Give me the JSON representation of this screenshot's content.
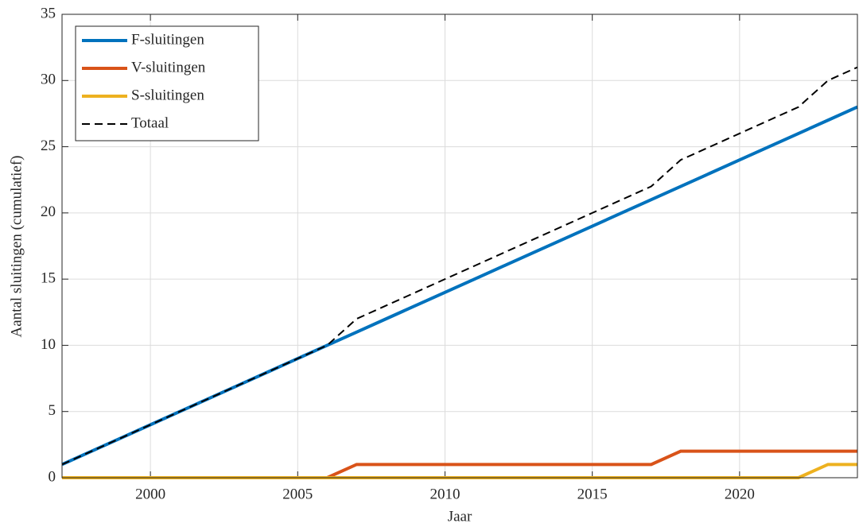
{
  "chart_data": {
    "type": "line",
    "x": [
      1997,
      1998,
      1999,
      2000,
      2001,
      2002,
      2003,
      2004,
      2005,
      2006,
      2007,
      2008,
      2009,
      2010,
      2011,
      2012,
      2013,
      2014,
      2015,
      2016,
      2017,
      2018,
      2019,
      2020,
      2021,
      2022,
      2023,
      2024
    ],
    "series": [
      {
        "name": "F-sluitingen",
        "color": "#0072BD",
        "linestyle": "solid",
        "values": [
          1,
          2,
          3,
          4,
          5,
          6,
          7,
          8,
          9,
          10,
          11,
          12,
          13,
          14,
          15,
          16,
          17,
          18,
          19,
          20,
          21,
          22,
          23,
          24,
          25,
          26,
          27,
          28
        ]
      },
      {
        "name": "V-sluitingen",
        "color": "#D95319",
        "linestyle": "solid",
        "values": [
          0,
          0,
          0,
          0,
          0,
          0,
          0,
          0,
          0,
          0,
          1,
          1,
          1,
          1,
          1,
          1,
          1,
          1,
          1,
          1,
          1,
          2,
          2,
          2,
          2,
          2,
          2,
          2
        ]
      },
      {
        "name": "S-sluitingen",
        "color": "#EDB120",
        "linestyle": "solid",
        "values": [
          0,
          0,
          0,
          0,
          0,
          0,
          0,
          0,
          0,
          0,
          0,
          0,
          0,
          0,
          0,
          0,
          0,
          0,
          0,
          0,
          0,
          0,
          0,
          0,
          0,
          0,
          1,
          1
        ]
      },
      {
        "name": "Totaal",
        "color": "#000000",
        "linestyle": "dashed",
        "values": [
          1,
          2,
          3,
          4,
          5,
          6,
          7,
          8,
          9,
          10,
          12,
          13,
          14,
          15,
          16,
          17,
          18,
          19,
          20,
          21,
          22,
          24,
          25,
          26,
          27,
          28,
          30,
          31
        ]
      }
    ],
    "x_label": "Jaar",
    "y_label": "Aantal sluitingen (cumulatief)",
    "xlim": [
      1997,
      2024
    ],
    "xticks": [
      2000,
      2005,
      2010,
      2015,
      2020
    ],
    "ylim": [
      0,
      35
    ],
    "yticks": [
      0,
      5,
      10,
      15,
      20,
      25,
      30,
      35
    ],
    "grid": true,
    "legend": "upper left"
  }
}
